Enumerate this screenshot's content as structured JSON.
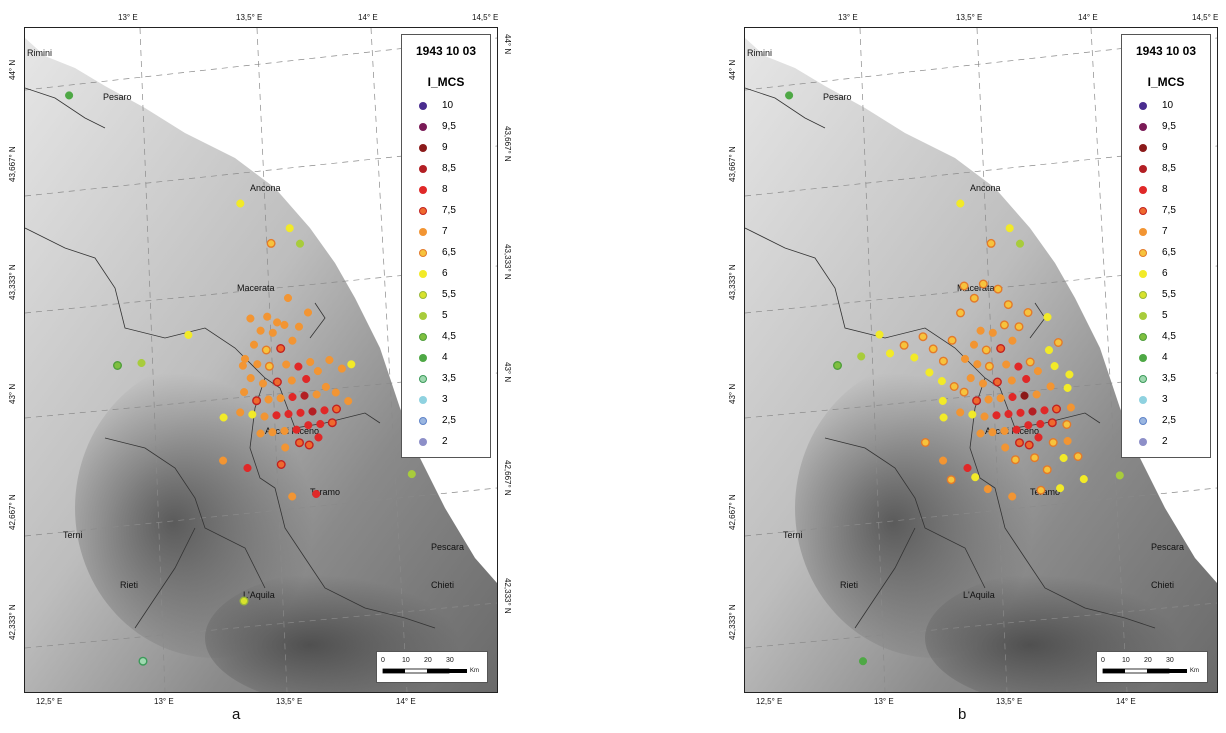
{
  "panels": [
    {
      "id": "a",
      "label": "a",
      "date": "1943 10 03"
    },
    {
      "id": "b",
      "label": "b",
      "date": "1943 10 03"
    }
  ],
  "legend": {
    "heading": "I_MCS",
    "items": [
      {
        "label": "10",
        "color": "#4a2d8f",
        "ring": ""
      },
      {
        "label": "9,5",
        "color": "#7a1b57",
        "ring": ""
      },
      {
        "label": "9",
        "color": "#8b1a1a",
        "ring": ""
      },
      {
        "label": "8,5",
        "color": "#b31f24",
        "ring": ""
      },
      {
        "label": "8",
        "color": "#e02828",
        "ring": ""
      },
      {
        "label": "7,5",
        "color": "#ee6a2e",
        "ring": "#c22020"
      },
      {
        "label": "7",
        "color": "#f29533",
        "ring": ""
      },
      {
        "label": "6,5",
        "color": "#f6c33d",
        "ring": "#e37a2a"
      },
      {
        "label": "6",
        "color": "#f2ea28",
        "ring": ""
      },
      {
        "label": "5,5",
        "color": "#d8e22c",
        "ring": "#9ab83a"
      },
      {
        "label": "5",
        "color": "#a8cc3c",
        "ring": ""
      },
      {
        "label": "4,5",
        "color": "#7fbf3f",
        "ring": "#4f9e3c"
      },
      {
        "label": "4",
        "color": "#4ea845",
        "ring": ""
      },
      {
        "label": "3,5",
        "color": "#9fd8b0",
        "ring": "#3c9a5a"
      },
      {
        "label": "3",
        "color": "#8fd2e0",
        "ring": ""
      },
      {
        "label": "2,5",
        "color": "#9ab6e0",
        "ring": "#5f83c8"
      },
      {
        "label": "2",
        "color": "#8d8fc8",
        "ring": ""
      }
    ]
  },
  "axes": {
    "top": [
      "13° E",
      "13,5° E",
      "14° E",
      "14,5° E"
    ],
    "bottom": [
      "12,5° E",
      "13° E",
      "13,5° E",
      "14° E"
    ],
    "left": [
      "44° N",
      "43,667° N",
      "43,333° N",
      "43° N",
      "42,667° N",
      "42,333° N"
    ],
    "right": [
      "44° N",
      "43,667° N",
      "43,333° N",
      "43° N",
      "42,667° N",
      "42,333° N"
    ]
  },
  "cities": [
    {
      "name": "Rimini"
    },
    {
      "name": "Pesaro"
    },
    {
      "name": "Ancona"
    },
    {
      "name": "Macerata"
    },
    {
      "name": "Ascoli Piceno"
    },
    {
      "name": "Teramo"
    },
    {
      "name": "Terni"
    },
    {
      "name": "Pescara"
    },
    {
      "name": "Rieti"
    },
    {
      "name": "L'Aquila"
    },
    {
      "name": "Chieti"
    }
  ],
  "scale": {
    "ticks": [
      "0",
      "10",
      "20",
      "30"
    ],
    "unit": "Km"
  },
  "points_a": [
    {
      "lon": 13.33,
      "lat": 42.91,
      "i": 6
    },
    {
      "lon": 13.32,
      "lat": 42.78,
      "i": 7
    },
    {
      "lon": 13.42,
      "lat": 42.75,
      "i": 8
    },
    {
      "lon": 13.56,
      "lat": 42.75,
      "i": 7.5
    },
    {
      "lon": 13.6,
      "lat": 42.65,
      "i": 7
    },
    {
      "lon": 13.7,
      "lat": 42.65,
      "i": 8
    },
    {
      "lon": 13.56,
      "lat": 43.42,
      "i": 6.5
    },
    {
      "lon": 13.44,
      "lat": 43.55,
      "i": 6
    },
    {
      "lon": 13.64,
      "lat": 43.46,
      "i": 6
    },
    {
      "lon": 13.68,
      "lat": 43.41,
      "i": 5
    },
    {
      "lon": 13.2,
      "lat": 43.17,
      "i": 6
    },
    {
      "lon": 12.9,
      "lat": 43.1,
      "i": 4.5
    },
    {
      "lon": 13.0,
      "lat": 43.1,
      "i": 5
    },
    {
      "lon": 13.87,
      "lat": 43.03,
      "i": 6
    },
    {
      "lon": 14.1,
      "lat": 42.68,
      "i": 5
    },
    {
      "lon": 12.75,
      "lat": 43.93,
      "i": 4
    },
    {
      "lon": 13.38,
      "lat": 42.35,
      "i": 5.5
    },
    {
      "lon": 12.95,
      "lat": 42.2,
      "i": 3.5
    },
    {
      "lon": 13.5,
      "lat": 43.16,
      "i": 7
    },
    {
      "lon": 13.55,
      "lat": 43.15,
      "i": 7
    },
    {
      "lon": 13.6,
      "lat": 43.17,
      "i": 7
    },
    {
      "lon": 13.47,
      "lat": 43.12,
      "i": 7
    },
    {
      "lon": 13.52,
      "lat": 43.1,
      "i": 6.5
    },
    {
      "lon": 13.58,
      "lat": 43.1,
      "i": 7.5
    },
    {
      "lon": 13.63,
      "lat": 43.12,
      "i": 7
    },
    {
      "lon": 13.66,
      "lat": 43.16,
      "i": 7
    },
    {
      "lon": 13.7,
      "lat": 43.2,
      "i": 7
    },
    {
      "lon": 13.43,
      "lat": 43.08,
      "i": 7
    },
    {
      "lon": 13.48,
      "lat": 43.06,
      "i": 7
    },
    {
      "lon": 13.53,
      "lat": 43.05,
      "i": 6.5
    },
    {
      "lon": 13.6,
      "lat": 43.05,
      "i": 7
    },
    {
      "lon": 13.65,
      "lat": 43.04,
      "i": 8
    },
    {
      "lon": 13.7,
      "lat": 43.05,
      "i": 7
    },
    {
      "lon": 13.45,
      "lat": 43.02,
      "i": 7
    },
    {
      "lon": 13.5,
      "lat": 43.0,
      "i": 7
    },
    {
      "lon": 13.56,
      "lat": 43.0,
      "i": 7.5
    },
    {
      "lon": 13.62,
      "lat": 43.0,
      "i": 7
    },
    {
      "lon": 13.68,
      "lat": 43.0,
      "i": 8
    },
    {
      "lon": 13.73,
      "lat": 43.02,
      "i": 7
    },
    {
      "lon": 13.78,
      "lat": 43.05,
      "i": 7
    },
    {
      "lon": 13.83,
      "lat": 43.02,
      "i": 7
    },
    {
      "lon": 13.42,
      "lat": 42.98,
      "i": 7
    },
    {
      "lon": 13.47,
      "lat": 42.95,
      "i": 7.5
    },
    {
      "lon": 13.52,
      "lat": 42.95,
      "i": 7
    },
    {
      "lon": 13.57,
      "lat": 42.95,
      "i": 7
    },
    {
      "lon": 13.62,
      "lat": 42.95,
      "i": 8
    },
    {
      "lon": 13.67,
      "lat": 42.95,
      "i": 8.5
    },
    {
      "lon": 13.72,
      "lat": 42.95,
      "i": 7
    },
    {
      "lon": 13.76,
      "lat": 42.97,
      "i": 7
    },
    {
      "lon": 13.8,
      "lat": 42.95,
      "i": 7
    },
    {
      "lon": 13.4,
      "lat": 42.92,
      "i": 7
    },
    {
      "lon": 13.45,
      "lat": 42.91,
      "i": 6
    },
    {
      "lon": 13.5,
      "lat": 42.9,
      "i": 7
    },
    {
      "lon": 13.55,
      "lat": 42.9,
      "i": 8
    },
    {
      "lon": 13.6,
      "lat": 42.9,
      "i": 8
    },
    {
      "lon": 13.65,
      "lat": 42.9,
      "i": 8
    },
    {
      "lon": 13.7,
      "lat": 42.9,
      "i": 8.5
    },
    {
      "lon": 13.75,
      "lat": 42.9,
      "i": 8
    },
    {
      "lon": 13.8,
      "lat": 42.9,
      "i": 7.5
    },
    {
      "lon": 13.85,
      "lat": 42.92,
      "i": 7
    },
    {
      "lon": 13.48,
      "lat": 42.85,
      "i": 7
    },
    {
      "lon": 13.53,
      "lat": 42.85,
      "i": 7
    },
    {
      "lon": 13.58,
      "lat": 42.85,
      "i": 7
    },
    {
      "lon": 13.63,
      "lat": 42.85,
      "i": 8
    },
    {
      "lon": 13.68,
      "lat": 42.86,
      "i": 8
    },
    {
      "lon": 13.73,
      "lat": 42.86,
      "i": 8
    },
    {
      "lon": 13.78,
      "lat": 42.86,
      "i": 7.5
    },
    {
      "lon": 13.58,
      "lat": 42.8,
      "i": 7
    },
    {
      "lon": 13.64,
      "lat": 42.81,
      "i": 7.5
    },
    {
      "lon": 13.68,
      "lat": 42.8,
      "i": 7.5
    },
    {
      "lon": 13.72,
      "lat": 42.82,
      "i": 8
    },
    {
      "lon": 13.42,
      "lat": 43.06,
      "i": 7
    },
    {
      "lon": 13.53,
      "lat": 43.2,
      "i": 7
    },
    {
      "lon": 13.57,
      "lat": 43.18,
      "i": 7
    },
    {
      "lon": 13.46,
      "lat": 43.2,
      "i": 7
    },
    {
      "lon": 13.62,
      "lat": 43.25,
      "i": 7
    }
  ],
  "points_b": [
    {
      "lon": 13.33,
      "lat": 42.91,
      "i": 6
    },
    {
      "lon": 13.32,
      "lat": 42.78,
      "i": 7
    },
    {
      "lon": 13.42,
      "lat": 42.75,
      "i": 8
    },
    {
      "lon": 13.6,
      "lat": 42.65,
      "i": 7
    },
    {
      "lon": 13.72,
      "lat": 42.66,
      "i": 6.5
    },
    {
      "lon": 13.8,
      "lat": 42.66,
      "i": 6
    },
    {
      "lon": 13.9,
      "lat": 42.68,
      "i": 6
    },
    {
      "lon": 14.05,
      "lat": 42.68,
      "i": 5
    },
    {
      "lon": 13.56,
      "lat": 43.42,
      "i": 6.5
    },
    {
      "lon": 13.44,
      "lat": 43.55,
      "i": 6
    },
    {
      "lon": 13.64,
      "lat": 43.46,
      "i": 6
    },
    {
      "lon": 13.68,
      "lat": 43.41,
      "i": 5
    },
    {
      "lon": 12.75,
      "lat": 43.93,
      "i": 4
    },
    {
      "lon": 12.95,
      "lat": 42.2,
      "i": 4
    },
    {
      "lon": 13.88,
      "lat": 42.75,
      "i": 6.5
    },
    {
      "lon": 13.25,
      "lat": 42.84,
      "i": 6.5
    },
    {
      "lon": 13.35,
      "lat": 42.72,
      "i": 6.5
    },
    {
      "lon": 13.45,
      "lat": 42.72,
      "i": 6
    },
    {
      "lon": 13.5,
      "lat": 42.68,
      "i": 7
    },
    {
      "lon": 13.75,
      "lat": 42.72,
      "i": 6.5
    },
    {
      "lon": 13.82,
      "lat": 42.75,
      "i": 6
    },
    {
      "lon": 13.0,
      "lat": 43.12,
      "i": 5
    },
    {
      "lon": 12.9,
      "lat": 43.1,
      "i": 4.5
    },
    {
      "lon": 13.08,
      "lat": 43.18,
      "i": 6
    },
    {
      "lon": 13.12,
      "lat": 43.12,
      "i": 6
    },
    {
      "lon": 13.18,
      "lat": 43.14,
      "i": 6.5
    },
    {
      "lon": 13.22,
      "lat": 43.1,
      "i": 6
    },
    {
      "lon": 13.26,
      "lat": 43.16,
      "i": 6.5
    },
    {
      "lon": 13.3,
      "lat": 43.12,
      "i": 6.5
    },
    {
      "lon": 13.34,
      "lat": 43.08,
      "i": 6.5
    },
    {
      "lon": 13.38,
      "lat": 43.14,
      "i": 6.5
    },
    {
      "lon": 13.28,
      "lat": 43.05,
      "i": 6
    },
    {
      "lon": 13.33,
      "lat": 43.02,
      "i": 6
    },
    {
      "lon": 13.38,
      "lat": 43.0,
      "i": 6.5
    },
    {
      "lon": 13.33,
      "lat": 42.96,
      "i": 6
    },
    {
      "lon": 13.42,
      "lat": 43.22,
      "i": 6.5
    },
    {
      "lon": 13.48,
      "lat": 43.26,
      "i": 6.5
    },
    {
      "lon": 13.44,
      "lat": 43.3,
      "i": 6.5
    },
    {
      "lon": 13.52,
      "lat": 43.3,
      "i": 6.5
    },
    {
      "lon": 13.58,
      "lat": 43.28,
      "i": 6.5
    },
    {
      "lon": 13.62,
      "lat": 43.23,
      "i": 6.5
    },
    {
      "lon": 13.5,
      "lat": 43.16,
      "i": 7
    },
    {
      "lon": 13.55,
      "lat": 43.15,
      "i": 7
    },
    {
      "lon": 13.6,
      "lat": 43.17,
      "i": 6.5
    },
    {
      "lon": 13.47,
      "lat": 43.12,
      "i": 7
    },
    {
      "lon": 13.52,
      "lat": 43.1,
      "i": 6.5
    },
    {
      "lon": 13.58,
      "lat": 43.1,
      "i": 7.5
    },
    {
      "lon": 13.63,
      "lat": 43.12,
      "i": 7
    },
    {
      "lon": 13.66,
      "lat": 43.16,
      "i": 6.5
    },
    {
      "lon": 13.7,
      "lat": 43.2,
      "i": 6.5
    },
    {
      "lon": 13.78,
      "lat": 43.18,
      "i": 6
    },
    {
      "lon": 13.43,
      "lat": 43.08,
      "i": 7
    },
    {
      "lon": 13.48,
      "lat": 43.06,
      "i": 7
    },
    {
      "lon": 13.53,
      "lat": 43.05,
      "i": 6.5
    },
    {
      "lon": 13.6,
      "lat": 43.05,
      "i": 7
    },
    {
      "lon": 13.65,
      "lat": 43.04,
      "i": 8
    },
    {
      "lon": 13.7,
      "lat": 43.05,
      "i": 6.5
    },
    {
      "lon": 13.78,
      "lat": 43.08,
      "i": 6
    },
    {
      "lon": 13.82,
      "lat": 43.1,
      "i": 6.5
    },
    {
      "lon": 13.45,
      "lat": 43.02,
      "i": 7
    },
    {
      "lon": 13.5,
      "lat": 43.0,
      "i": 7
    },
    {
      "lon": 13.56,
      "lat": 43.0,
      "i": 7.5
    },
    {
      "lon": 13.62,
      "lat": 43.0,
      "i": 7
    },
    {
      "lon": 13.68,
      "lat": 43.0,
      "i": 8
    },
    {
      "lon": 13.73,
      "lat": 43.02,
      "i": 7
    },
    {
      "lon": 13.8,
      "lat": 43.03,
      "i": 6
    },
    {
      "lon": 13.86,
      "lat": 43.0,
      "i": 6
    },
    {
      "lon": 13.42,
      "lat": 42.98,
      "i": 6.5
    },
    {
      "lon": 13.47,
      "lat": 42.95,
      "i": 7.5
    },
    {
      "lon": 13.52,
      "lat": 42.95,
      "i": 7
    },
    {
      "lon": 13.57,
      "lat": 42.95,
      "i": 7
    },
    {
      "lon": 13.62,
      "lat": 42.95,
      "i": 8
    },
    {
      "lon": 13.67,
      "lat": 42.95,
      "i": 9
    },
    {
      "lon": 13.72,
      "lat": 42.95,
      "i": 7
    },
    {
      "lon": 13.78,
      "lat": 42.97,
      "i": 7
    },
    {
      "lon": 13.85,
      "lat": 42.96,
      "i": 6
    },
    {
      "lon": 13.4,
      "lat": 42.92,
      "i": 7
    },
    {
      "lon": 13.45,
      "lat": 42.91,
      "i": 6
    },
    {
      "lon": 13.5,
      "lat": 42.9,
      "i": 7
    },
    {
      "lon": 13.55,
      "lat": 42.9,
      "i": 8
    },
    {
      "lon": 13.6,
      "lat": 42.9,
      "i": 8
    },
    {
      "lon": 13.65,
      "lat": 42.9,
      "i": 8
    },
    {
      "lon": 13.7,
      "lat": 42.9,
      "i": 8.5
    },
    {
      "lon": 13.75,
      "lat": 42.9,
      "i": 8
    },
    {
      "lon": 13.8,
      "lat": 42.9,
      "i": 7.5
    },
    {
      "lon": 13.86,
      "lat": 42.9,
      "i": 7
    },
    {
      "lon": 13.48,
      "lat": 42.85,
      "i": 7
    },
    {
      "lon": 13.53,
      "lat": 42.85,
      "i": 7
    },
    {
      "lon": 13.58,
      "lat": 42.85,
      "i": 7
    },
    {
      "lon": 13.63,
      "lat": 42.85,
      "i": 8
    },
    {
      "lon": 13.68,
      "lat": 42.86,
      "i": 8
    },
    {
      "lon": 13.73,
      "lat": 42.86,
      "i": 8
    },
    {
      "lon": 13.78,
      "lat": 42.86,
      "i": 7.5
    },
    {
      "lon": 13.84,
      "lat": 42.85,
      "i": 6.5
    },
    {
      "lon": 13.58,
      "lat": 42.8,
      "i": 7
    },
    {
      "lon": 13.64,
      "lat": 42.81,
      "i": 7.5
    },
    {
      "lon": 13.68,
      "lat": 42.8,
      "i": 7.5
    },
    {
      "lon": 13.72,
      "lat": 42.82,
      "i": 8
    },
    {
      "lon": 13.78,
      "lat": 42.8,
      "i": 6.5
    },
    {
      "lon": 13.84,
      "lat": 42.8,
      "i": 7
    },
    {
      "lon": 13.62,
      "lat": 42.76,
      "i": 6.5
    },
    {
      "lon": 13.7,
      "lat": 42.76,
      "i": 6.5
    }
  ]
}
